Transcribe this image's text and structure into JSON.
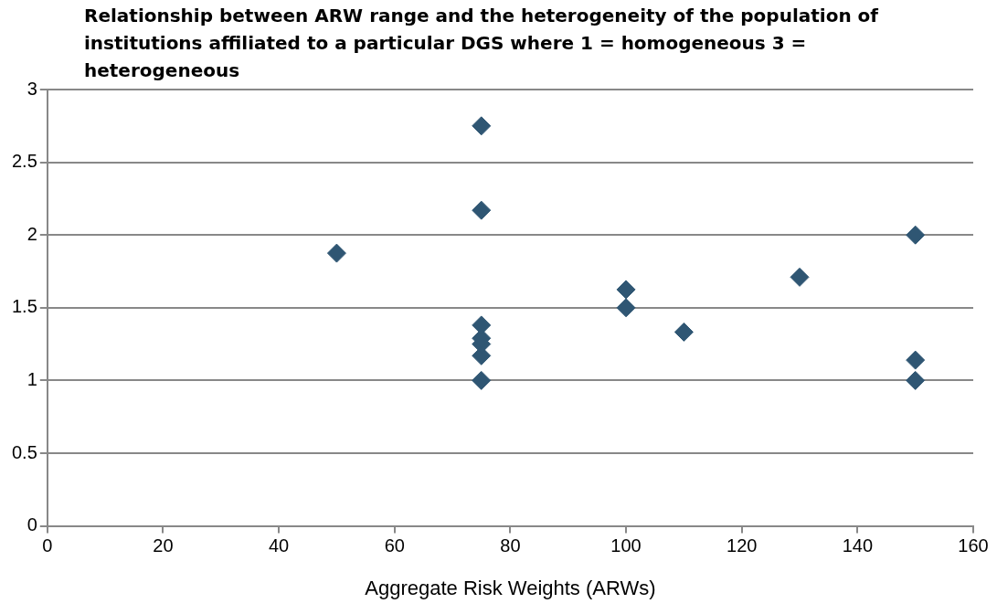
{
  "chart_data": {
    "type": "scatter",
    "title": "Relationship between ARW range and the heterogeneity of the population of institutions affiliated to a particular DGS where 1 = homogeneous 3 = heterogeneous",
    "xlabel": "Aggregate Risk Weights (ARWs)",
    "series": [
      {
        "color": "#2f5673",
        "x": [
          50,
          75,
          75,
          75,
          75,
          75,
          75,
          75,
          100,
          100,
          110,
          130,
          150,
          150,
          150
        ],
        "values": [
          1.875,
          1,
          1.17,
          1.25,
          1.29,
          1.38,
          2.17,
          2.75,
          1.625,
          1.5,
          1.333,
          1.71,
          2,
          1.14,
          1
        ]
      }
    ],
    "xlim": [
      0,
      160
    ],
    "xticks": [
      0,
      20,
      40,
      60,
      80,
      100,
      120,
      140,
      160
    ],
    "ylim": [
      0,
      3
    ],
    "yticks": [
      0,
      0.5,
      1,
      1.5,
      2,
      2.5,
      3
    ],
    "grid": "y",
    "marker": "diamond",
    "legend": false
  }
}
